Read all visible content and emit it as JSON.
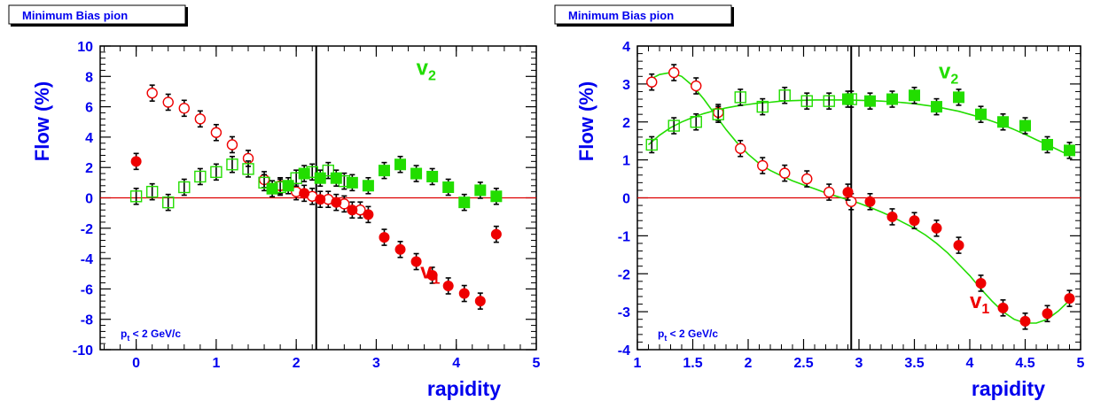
{
  "colors": {
    "axis": "#000000",
    "text": "#0000ee",
    "v1": "#ee0000",
    "v2": "#22dd00",
    "zero_line": "#dd0000",
    "fit_line": "#22dd00"
  },
  "chart_data": [
    {
      "type": "scatter",
      "title": "Minimum Bias pion",
      "xlabel": "rapidity",
      "ylabel": "Flow (%)",
      "xlim": [
        -0.45,
        5
      ],
      "ylim": [
        -10,
        10
      ],
      "xticks": [
        0,
        1,
        2,
        3,
        4,
        5
      ],
      "xticklabels": [
        "0",
        "1",
        "2",
        "3",
        "4",
        "5"
      ],
      "yticks": [
        -10,
        -8,
        -6,
        -4,
        -2,
        0,
        2,
        4,
        6,
        8,
        10
      ],
      "yticklabels": [
        "-10",
        "-8",
        "-6",
        "-4",
        "-2",
        "0",
        "2",
        "4",
        "6",
        "8",
        "10"
      ],
      "vline_x": 2.25,
      "annotation": {
        "main": "p",
        "sub": "t",
        "rest": " < 2 GeV/c"
      },
      "series_labels": [
        {
          "main": "v",
          "sub": "2",
          "x": 3.5,
          "y": 8.1,
          "color_key": "v2"
        },
        {
          "main": "v",
          "sub": "1",
          "x": 3.55,
          "y": -5.3,
          "color_key": "v1"
        }
      ],
      "series": [
        {
          "key": "v1-open",
          "marker": "open-circle",
          "color_key": "v1",
          "x": [
            0.2,
            0.4,
            0.6,
            0.8,
            1.0,
            1.2,
            1.4,
            1.6,
            1.8,
            2.0,
            2.2,
            2.4,
            2.6,
            2.8
          ],
          "y": [
            6.9,
            6.3,
            5.9,
            5.2,
            4.3,
            3.5,
            2.6,
            1.2,
            0.8,
            0.4,
            0.1,
            -0.1,
            -0.4,
            -0.8
          ]
        },
        {
          "key": "v1-filled",
          "marker": "filled-circle",
          "color_key": "v1",
          "x": [
            2.1,
            2.3,
            2.5,
            2.7,
            2.9,
            3.1,
            3.3,
            3.5,
            3.7,
            3.9,
            4.1,
            4.3,
            4.5
          ],
          "y": [
            0.3,
            -0.1,
            -0.3,
            -0.8,
            -1.1,
            -2.6,
            -3.4,
            -4.2,
            -5.1,
            -5.8,
            -6.3,
            -6.8,
            -2.4
          ]
        },
        {
          "key": "v1-extra",
          "marker": "filled-circle",
          "color_key": "v1",
          "x": [
            0.0
          ],
          "y": [
            2.4
          ]
        },
        {
          "key": "v2-open",
          "marker": "open-square",
          "color_key": "v2",
          "x": [
            0.0,
            0.2,
            0.4,
            0.6,
            0.8,
            1.0,
            1.2,
            1.4,
            1.6,
            1.8,
            2.0,
            2.2,
            2.4,
            2.6
          ],
          "y": [
            0.1,
            0.4,
            -0.3,
            0.7,
            1.4,
            1.7,
            2.2,
            1.9,
            1.0,
            0.7,
            1.3,
            1.7,
            1.8,
            1.1
          ]
        },
        {
          "key": "v2-filled",
          "marker": "filled-square",
          "color_key": "v2",
          "x": [
            1.7,
            1.9,
            2.1,
            2.3,
            2.5,
            2.7,
            2.9,
            3.1,
            3.3,
            3.5,
            3.7,
            3.9,
            4.1,
            4.3,
            4.5
          ],
          "y": [
            0.6,
            0.8,
            1.6,
            1.3,
            1.3,
            1.0,
            0.8,
            1.8,
            2.2,
            1.6,
            1.4,
            0.7,
            -0.3,
            0.5,
            0.1
          ]
        }
      ]
    },
    {
      "type": "scatter",
      "title": "Minimum Bias pion",
      "xlabel": "rapidity",
      "ylabel": "Flow (%)",
      "xlim": [
        1.0,
        5.0
      ],
      "ylim": [
        -4,
        4
      ],
      "xticks": [
        1,
        1.5,
        2,
        2.5,
        3,
        3.5,
        4,
        4.5,
        5
      ],
      "xticklabels": [
        "1",
        "1.5",
        "2",
        "2.5",
        "3",
        "3.5",
        "4",
        "4.5",
        "5"
      ],
      "yticks": [
        -4,
        -3,
        -2,
        -1,
        0,
        1,
        2,
        3,
        4
      ],
      "yticklabels": [
        "-4",
        "-3",
        "-2",
        "-1",
        "0",
        "1",
        "2",
        "3",
        "4"
      ],
      "vline_x": 2.93,
      "annotation": {
        "main": "p",
        "sub": "t",
        "rest": " < 2 GeV/c"
      },
      "series_labels": [
        {
          "main": "v",
          "sub": "2",
          "x": 3.72,
          "y": 3.15,
          "color_key": "v2"
        },
        {
          "main": "v",
          "sub": "1",
          "x": 4.0,
          "y": -2.9,
          "color_key": "v1"
        }
      ],
      "series": [
        {
          "key": "v1-open",
          "marker": "open-circle",
          "color_key": "v1",
          "x": [
            1.13,
            1.33,
            1.53,
            1.73,
            1.93,
            2.13,
            2.33,
            2.53,
            2.73,
            2.93
          ],
          "y": [
            3.05,
            3.3,
            2.95,
            2.25,
            1.3,
            0.85,
            0.65,
            0.5,
            0.15,
            -0.1
          ]
        },
        {
          "key": "v1-filled",
          "marker": "filled-circle",
          "color_key": "v1",
          "x": [
            2.9,
            3.1,
            3.3,
            3.5,
            3.7,
            3.9,
            4.1,
            4.3,
            4.5,
            4.7,
            4.9
          ],
          "y": [
            0.15,
            -0.1,
            -0.5,
            -0.6,
            -0.8,
            -1.25,
            -2.25,
            -2.9,
            -3.25,
            -3.05,
            -2.65
          ]
        },
        {
          "key": "v2-open",
          "marker": "open-square",
          "color_key": "v2",
          "x": [
            1.13,
            1.33,
            1.53,
            1.73,
            1.93,
            2.13,
            2.33,
            2.53,
            2.73,
            2.93
          ],
          "y": [
            1.4,
            1.9,
            2.0,
            2.2,
            2.65,
            2.4,
            2.7,
            2.55,
            2.55,
            2.6
          ]
        },
        {
          "key": "v2-filled",
          "marker": "filled-square",
          "color_key": "v2",
          "x": [
            2.9,
            3.1,
            3.3,
            3.5,
            3.7,
            3.9,
            4.1,
            4.3,
            4.5,
            4.7,
            4.9
          ],
          "y": [
            2.6,
            2.55,
            2.6,
            2.7,
            2.4,
            2.65,
            2.2,
            2.0,
            1.9,
            1.4,
            1.25
          ]
        }
      ],
      "fits": [
        {
          "key": "v1-fit",
          "color_key": "fit_line",
          "x": [
            1.1,
            1.2,
            1.3,
            1.4,
            1.5,
            1.6,
            1.7,
            1.8,
            1.9,
            2.0,
            2.1,
            2.2,
            2.3,
            2.4,
            2.5,
            2.6,
            2.7,
            2.8,
            2.9,
            3.0,
            3.1,
            3.2,
            3.3,
            3.4,
            3.5,
            3.6,
            3.7,
            3.8,
            3.9,
            4.0,
            4.1,
            4.2,
            4.3,
            4.4,
            4.5,
            4.6,
            4.7,
            4.8,
            4.9
          ],
          "y": [
            3.1,
            3.25,
            3.3,
            3.2,
            2.95,
            2.6,
            2.2,
            1.8,
            1.45,
            1.15,
            0.9,
            0.72,
            0.58,
            0.45,
            0.34,
            0.24,
            0.13,
            0.04,
            -0.05,
            -0.14,
            -0.25,
            -0.37,
            -0.5,
            -0.65,
            -0.8,
            -0.98,
            -1.2,
            -1.45,
            -1.75,
            -2.05,
            -2.4,
            -2.72,
            -3.0,
            -3.2,
            -3.3,
            -3.3,
            -3.2,
            -2.98,
            -2.7
          ]
        },
        {
          "key": "v2-fit",
          "color_key": "fit_line",
          "x": [
            1.1,
            1.2,
            1.3,
            1.4,
            1.5,
            1.6,
            1.7,
            1.8,
            1.9,
            2.0,
            2.1,
            2.2,
            2.3,
            2.4,
            2.5,
            2.6,
            2.7,
            2.8,
            2.9,
            3.0,
            3.1,
            3.2,
            3.3,
            3.4,
            3.5,
            3.6,
            3.7,
            3.8,
            3.9,
            4.0,
            4.1,
            4.2,
            4.3,
            4.4,
            4.5,
            4.6,
            4.7,
            4.8,
            4.9
          ],
          "y": [
            1.4,
            1.65,
            1.85,
            2.0,
            2.12,
            2.22,
            2.3,
            2.37,
            2.42,
            2.46,
            2.5,
            2.52,
            2.55,
            2.56,
            2.57,
            2.58,
            2.58,
            2.58,
            2.58,
            2.57,
            2.56,
            2.55,
            2.53,
            2.51,
            2.48,
            2.44,
            2.4,
            2.34,
            2.28,
            2.2,
            2.12,
            2.02,
            1.92,
            1.8,
            1.67,
            1.53,
            1.4,
            1.26,
            1.12
          ]
        }
      ]
    }
  ]
}
